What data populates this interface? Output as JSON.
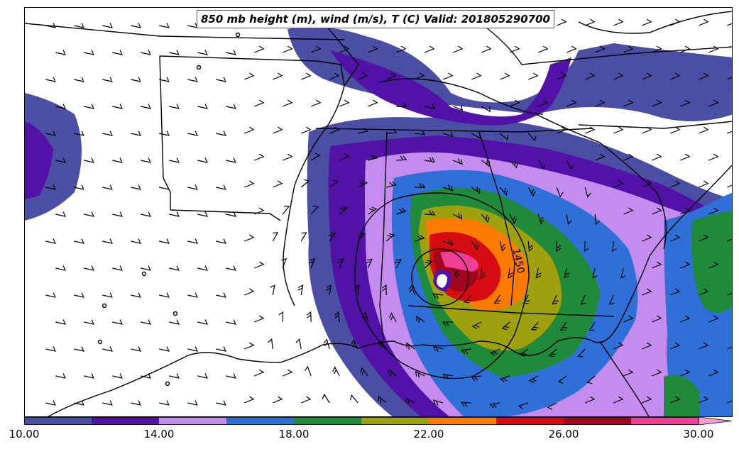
{
  "map": {
    "title": "850 mb height (m), wind (m/s), T (C) Valid: 201805290700",
    "contour_label": "1450",
    "region": "southeastern United States",
    "shaded_field": "T (C)"
  },
  "colorbar": {
    "levels": [
      10,
      12,
      14,
      16,
      18,
      20,
      22,
      24,
      26,
      28,
      30
    ],
    "colors": [
      "#4a4fa3",
      "#5212a8",
      "#c58cf0",
      "#2e6fd8",
      "#1f8a3a",
      "#9ea00e",
      "#ff7a00",
      "#d60c12",
      "#a0061e",
      "#ee3e96",
      "#f3a0d0"
    ],
    "tick_labels": [
      "10.00",
      "14.00",
      "18.00",
      "22.00",
      "26.00",
      "30.00"
    ],
    "extend": "max"
  }
}
